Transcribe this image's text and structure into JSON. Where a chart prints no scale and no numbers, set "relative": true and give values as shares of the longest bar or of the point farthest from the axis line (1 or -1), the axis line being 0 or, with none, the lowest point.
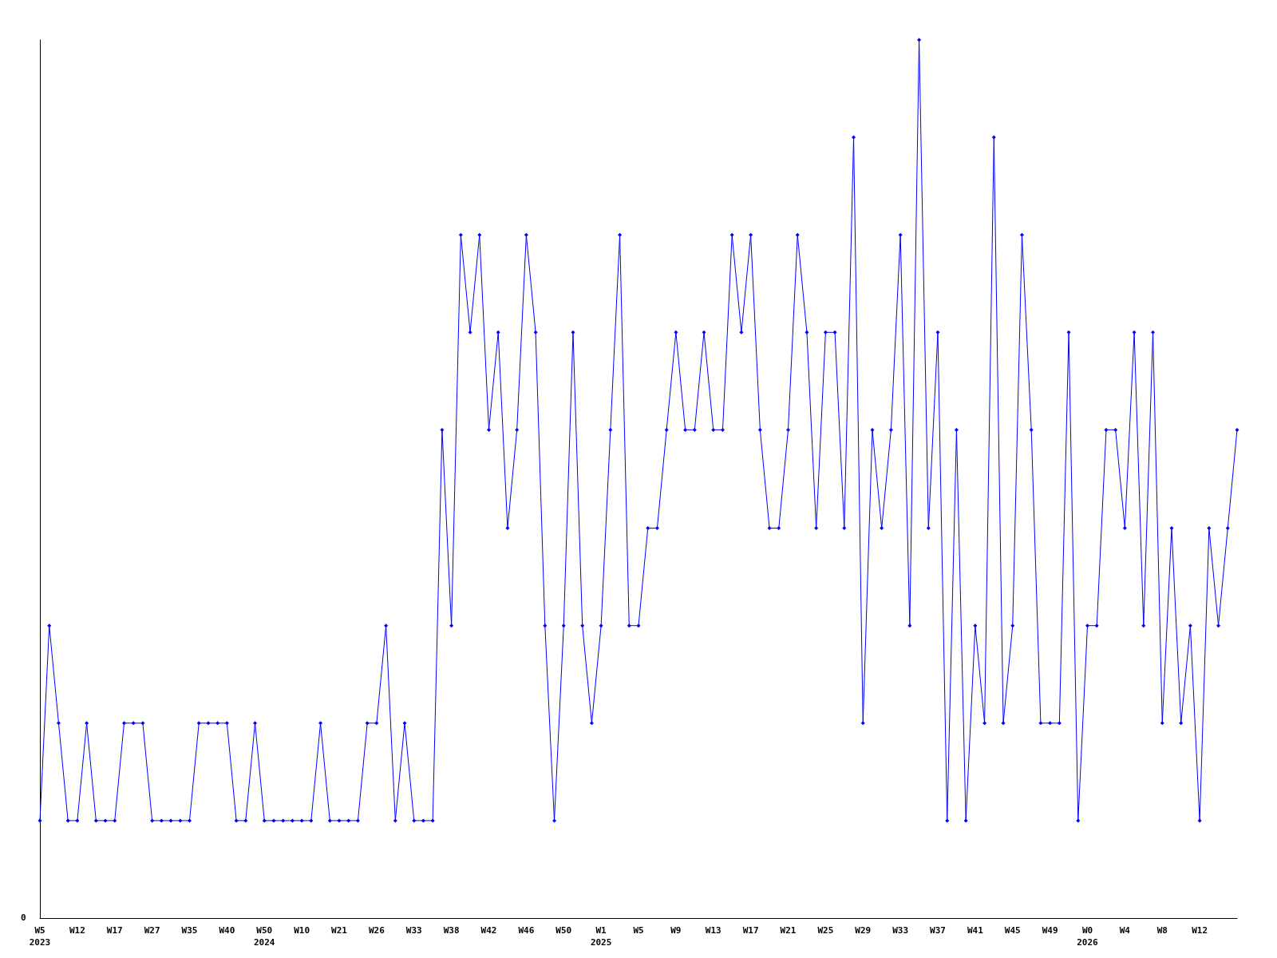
{
  "chart_data": {
    "type": "line",
    "relative": true,
    "marker": "diamond",
    "grid": false,
    "annotations": [
      "0"
    ],
    "categories": [
      "W5\n2023",
      null,
      null,
      null,
      "W12",
      null,
      null,
      null,
      "W17",
      null,
      null,
      null,
      "W27",
      null,
      null,
      null,
      "W35",
      null,
      null,
      null,
      "W40",
      null,
      null,
      null,
      "W50\n2024",
      null,
      null,
      null,
      "W10",
      null,
      null,
      null,
      "W21",
      null,
      null,
      null,
      "W26",
      null,
      null,
      null,
      "W33",
      null,
      null,
      null,
      "W38",
      null,
      null,
      null,
      "W42",
      null,
      null,
      null,
      "W46",
      null,
      null,
      null,
      "W50",
      null,
      null,
      null,
      "W1\n2025",
      null,
      null,
      null,
      "W5",
      null,
      null,
      null,
      "W9",
      null,
      null,
      null,
      "W13",
      null,
      null,
      null,
      "W17",
      null,
      null,
      null,
      "W21",
      null,
      null,
      null,
      "W25",
      null,
      null,
      null,
      "W29",
      null,
      null,
      null,
      "W33",
      null,
      null,
      null,
      "W37",
      null,
      null,
      null,
      "W41",
      null,
      null,
      null,
      "W45",
      null,
      null,
      null,
      "W49",
      null,
      null,
      null,
      "W0\n2026",
      null,
      null,
      null,
      "W4",
      null,
      null,
      null,
      "W8",
      null,
      null,
      null,
      "W12",
      null,
      null,
      null,
      null
    ],
    "series": [
      {
        "color": "#0000ff",
        "values": [
          0.111,
          0.333,
          0.222,
          0.111,
          0.111,
          0.222,
          0.111,
          0.111,
          0.111,
          0.222,
          0.222,
          0.222,
          0.111,
          0.111,
          0.111,
          0.111,
          0.111,
          0.222,
          0.222,
          0.222,
          0.222,
          0.111,
          0.111,
          0.222,
          0.111,
          0.111,
          0.111,
          0.111,
          0.111,
          0.111,
          0.222,
          0.111,
          0.111,
          0.111,
          0.111,
          0.222,
          0.222,
          0.333,
          0.111,
          0.222,
          0.111,
          0.111,
          0.111,
          0.556,
          0.333,
          0.778,
          0.667,
          0.778,
          0.556,
          0.667,
          0.444,
          0.556,
          0.778,
          0.667,
          0.333,
          0.111,
          0.333,
          0.667,
          0.333,
          0.222,
          0.333,
          0.556,
          0.778,
          0.333,
          0.333,
          0.444,
          0.444,
          0.556,
          0.667,
          0.556,
          0.556,
          0.667,
          0.556,
          0.556,
          0.778,
          0.667,
          0.778,
          0.556,
          0.444,
          0.444,
          0.556,
          0.778,
          0.667,
          0.444,
          0.667,
          0.667,
          0.444,
          0.889,
          0.222,
          0.556,
          0.444,
          0.556,
          0.778,
          0.333,
          1,
          0.444,
          0.667,
          0.111,
          0.556,
          0.111,
          0.333,
          0.222,
          0.889,
          0.222,
          0.333,
          0.778,
          0.556,
          0.222,
          0.222,
          0.222,
          0.667,
          0.111,
          0.333,
          0.333,
          0.556,
          0.556,
          0.444,
          0.667,
          0.333,
          0.667,
          0.222,
          0.444,
          0.222,
          0.333,
          0.111,
          0.444,
          0.333,
          0.444,
          0.556
        ]
      }
    ]
  }
}
